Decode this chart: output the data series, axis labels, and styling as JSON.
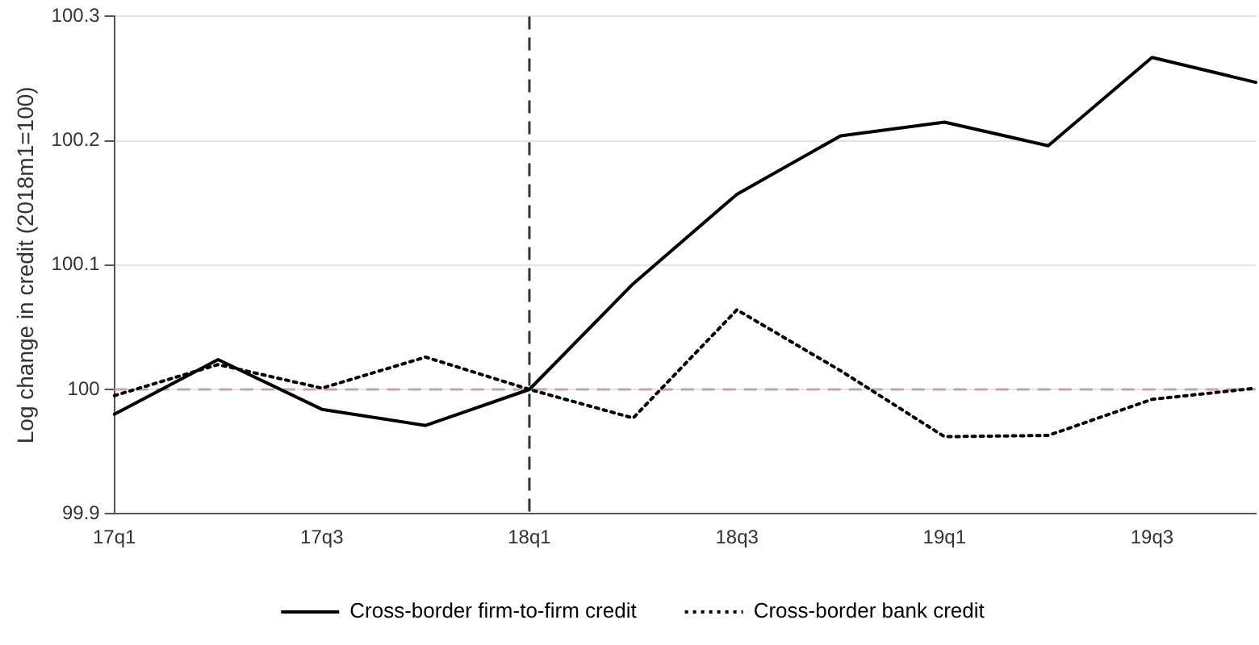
{
  "chart_data": {
    "type": "line",
    "ylabel": "Log change in credit (2018m1=100)",
    "categories": [
      "17q1",
      null,
      "17q3",
      null,
      "18q1",
      null,
      "18q3",
      null,
      "19q1",
      null,
      "19q3",
      null
    ],
    "series": [
      {
        "name": "Cross-border firm-to-firm credit",
        "color": "#000000",
        "line_style": "solid",
        "values": [
          99.98,
          100.024,
          99.984,
          99.971,
          100,
          100.085,
          100.157,
          100.204,
          100.215,
          100.196,
          100.267,
          100.247
        ]
      },
      {
        "name": "Cross-border bank credit",
        "color": "#000000",
        "line_style": "dotted",
        "values": [
          99.995,
          100.02,
          100.001,
          100.026,
          100,
          99.977,
          100.064,
          100.015,
          99.962,
          99.963,
          99.992,
          100.001
        ]
      }
    ],
    "ylim": [
      99.9,
      100.3
    ],
    "yticks": [
      99.9,
      100,
      100.1,
      100.2,
      100.3
    ],
    "ref_lines": [
      {
        "axis": "x",
        "value": "18q1",
        "color": "#333333",
        "line_style": "dashed"
      },
      {
        "axis": "y",
        "value": 100,
        "color": "#c9a3aa",
        "line_style": "dashed"
      }
    ],
    "grid": "y",
    "legend": "bottom",
    "marker": "none"
  }
}
